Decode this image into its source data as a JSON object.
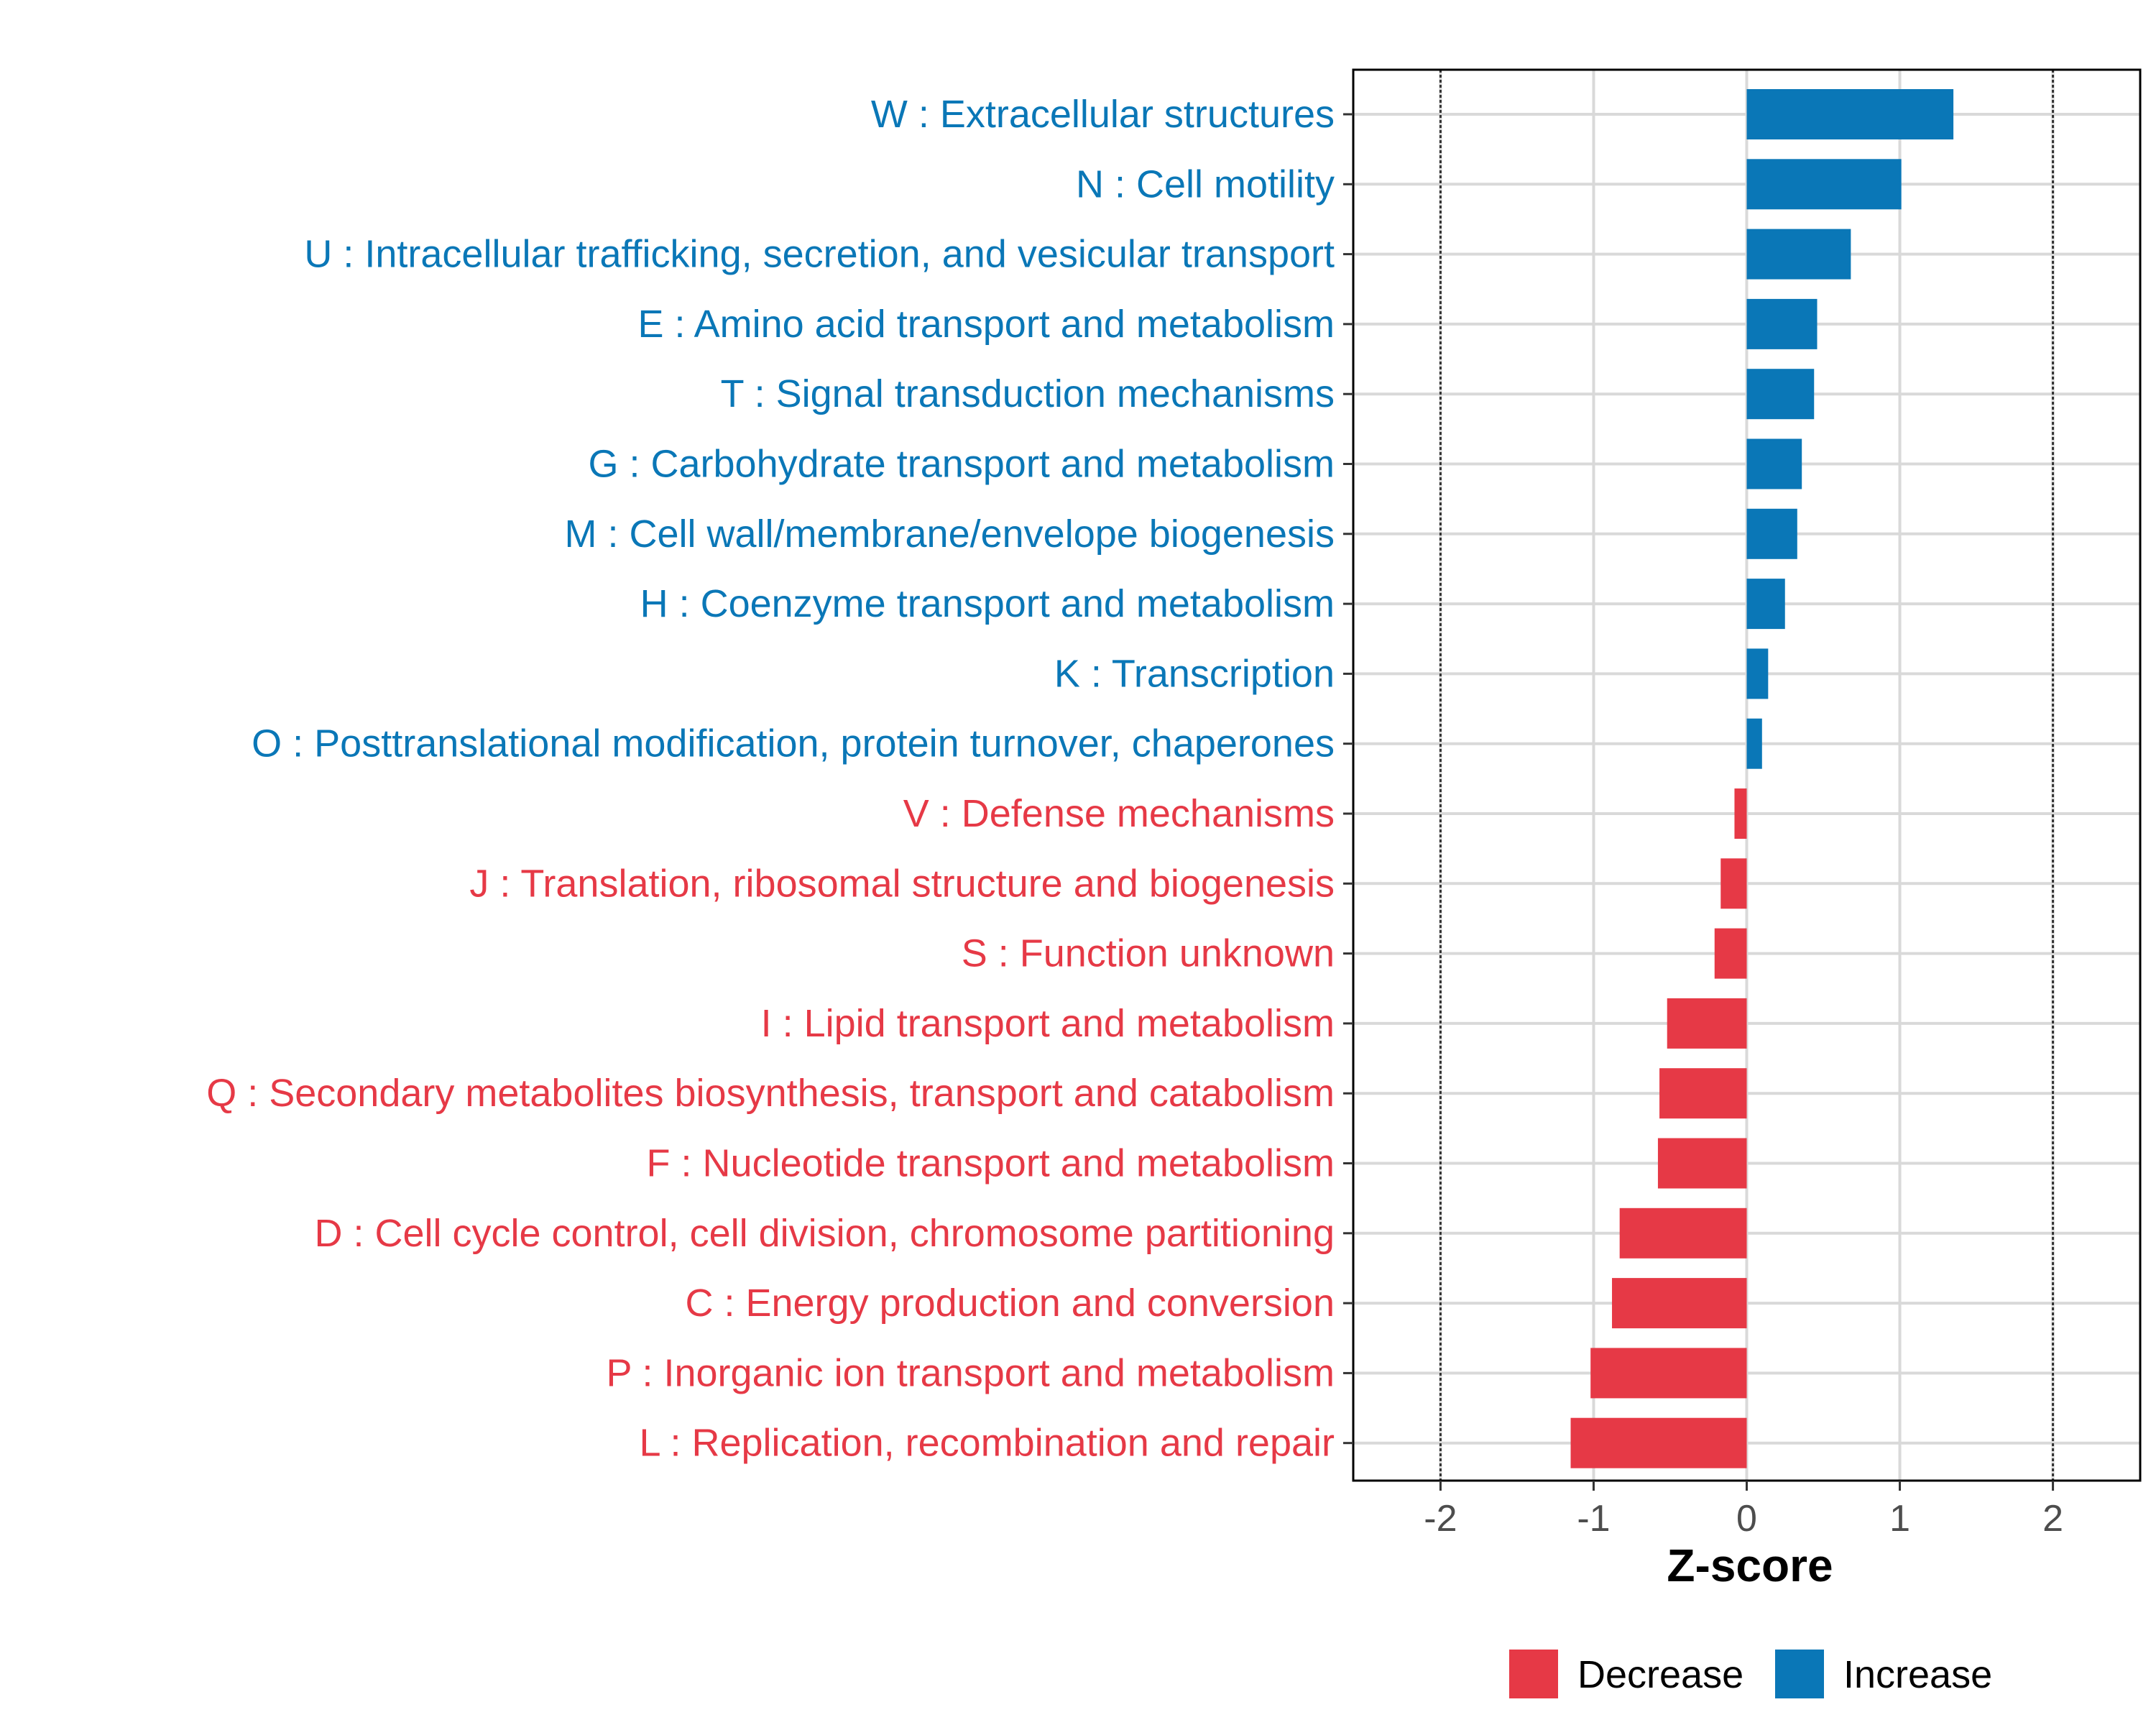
{
  "chart_data": {
    "type": "bar",
    "orientation": "horizontal",
    "title": "",
    "xlabel": "Z-score",
    "ylabel": "",
    "xlim": [
      -2.57,
      2.57
    ],
    "xticks": [
      -2,
      -1,
      0,
      1,
      2
    ],
    "xtick_labels": [
      "-2",
      "-1",
      "0",
      "1",
      "2"
    ],
    "reference_lines": [
      -2,
      2
    ],
    "grid": true,
    "categories": [
      "W : Extracellular structures",
      "N : Cell motility",
      "U : Intracellular trafficking, secretion, and vesicular transport",
      "E : Amino acid transport and metabolism",
      "T : Signal transduction mechanisms",
      "G : Carbohydrate transport and metabolism",
      "M : Cell wall/membrane/envelope biogenesis",
      "H : Coenzyme transport and metabolism",
      "K : Transcription",
      "O : Posttranslational modification, protein turnover, chaperones",
      "V : Defense mechanisms",
      "J : Translation, ribosomal structure and biogenesis",
      "S : Function unknown",
      "I : Lipid transport and metabolism",
      "Q : Secondary metabolites biosynthesis, transport and catabolism",
      "F : Nucleotide transport and metabolism",
      "D : Cell cycle control, cell division, chromosome partitioning",
      "C : Energy production and conversion",
      "P : Inorganic ion transport and metabolism",
      "L : Replication, recombination and repair"
    ],
    "values": [
      1.35,
      1.01,
      0.68,
      0.46,
      0.44,
      0.36,
      0.33,
      0.25,
      0.14,
      0.1,
      -0.08,
      -0.17,
      -0.21,
      -0.52,
      -0.57,
      -0.58,
      -0.83,
      -0.88,
      -1.02,
      -1.15
    ],
    "groups": [
      "Increase",
      "Increase",
      "Increase",
      "Increase",
      "Increase",
      "Increase",
      "Increase",
      "Increase",
      "Increase",
      "Increase",
      "Decrease",
      "Decrease",
      "Decrease",
      "Decrease",
      "Decrease",
      "Decrease",
      "Decrease",
      "Decrease",
      "Decrease",
      "Decrease"
    ],
    "legend": {
      "position": "bottom",
      "entries": [
        {
          "label": "Decrease",
          "color": "#e63946"
        },
        {
          "label": "Increase",
          "color": "#0a77b7"
        }
      ]
    },
    "colors": {
      "Increase": "#0a77b7",
      "Decrease": "#e63946"
    }
  }
}
